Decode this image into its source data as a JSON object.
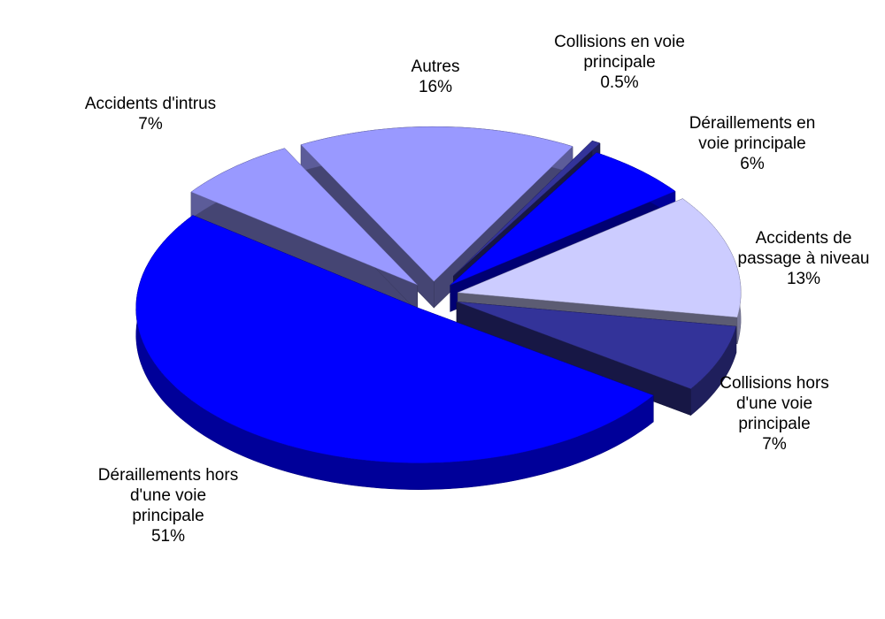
{
  "chart_data": {
    "type": "pie",
    "categories": [
      "Autres",
      "Collisions en voie principale",
      "Déraillements en voie principale",
      "Accidents de passage à niveau",
      "Collisions hors d'une voie principale",
      "Déraillements hors d'une voie principale",
      "Accidents d'intrus"
    ],
    "values": [
      16,
      0.5,
      6,
      13,
      7,
      51,
      7
    ],
    "value_labels": [
      "16%",
      "0.5%",
      "6%",
      "13%",
      "7%",
      "51%",
      "7%"
    ],
    "colors": [
      "#9999ff",
      "#333399",
      "#0000ff",
      "#ccccff",
      "#333399",
      "#0000ff",
      "#9999ff"
    ]
  }
}
